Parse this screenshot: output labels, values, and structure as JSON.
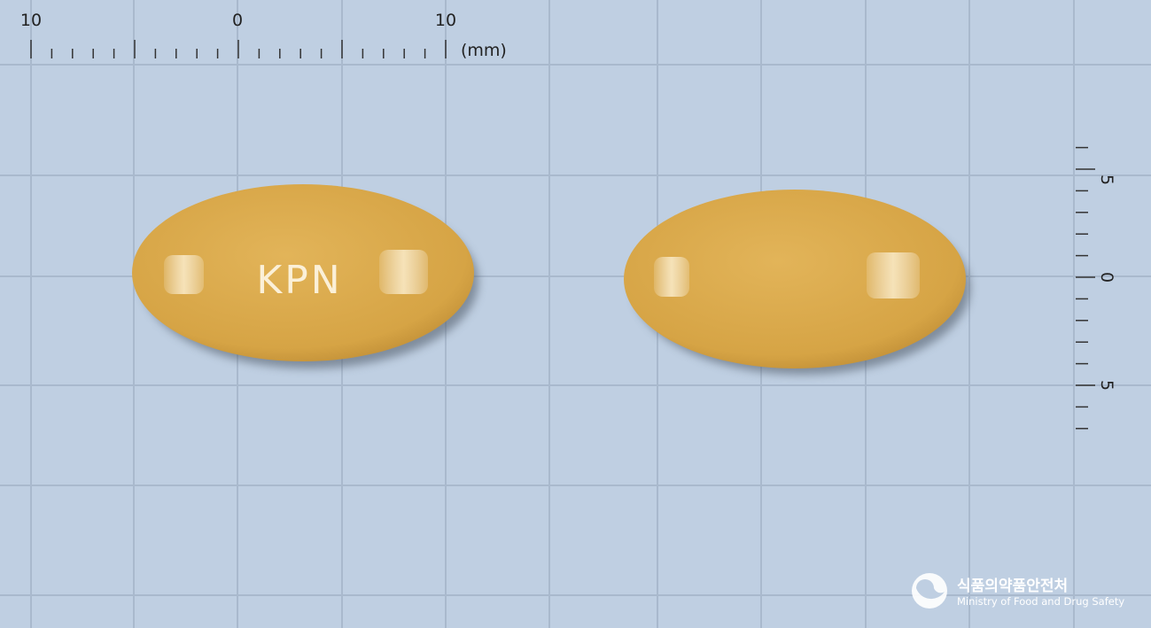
{
  "ruler_top": {
    "labels": [
      "10",
      "0",
      "10"
    ],
    "unit": "(mm)"
  },
  "ruler_right": {
    "labels": [
      "5",
      "0",
      "5"
    ]
  },
  "pill_front": {
    "imprint": "KPN"
  },
  "logo": {
    "korean": "식품의약품안전처",
    "english": "Ministry of Food and Drug Safety"
  }
}
